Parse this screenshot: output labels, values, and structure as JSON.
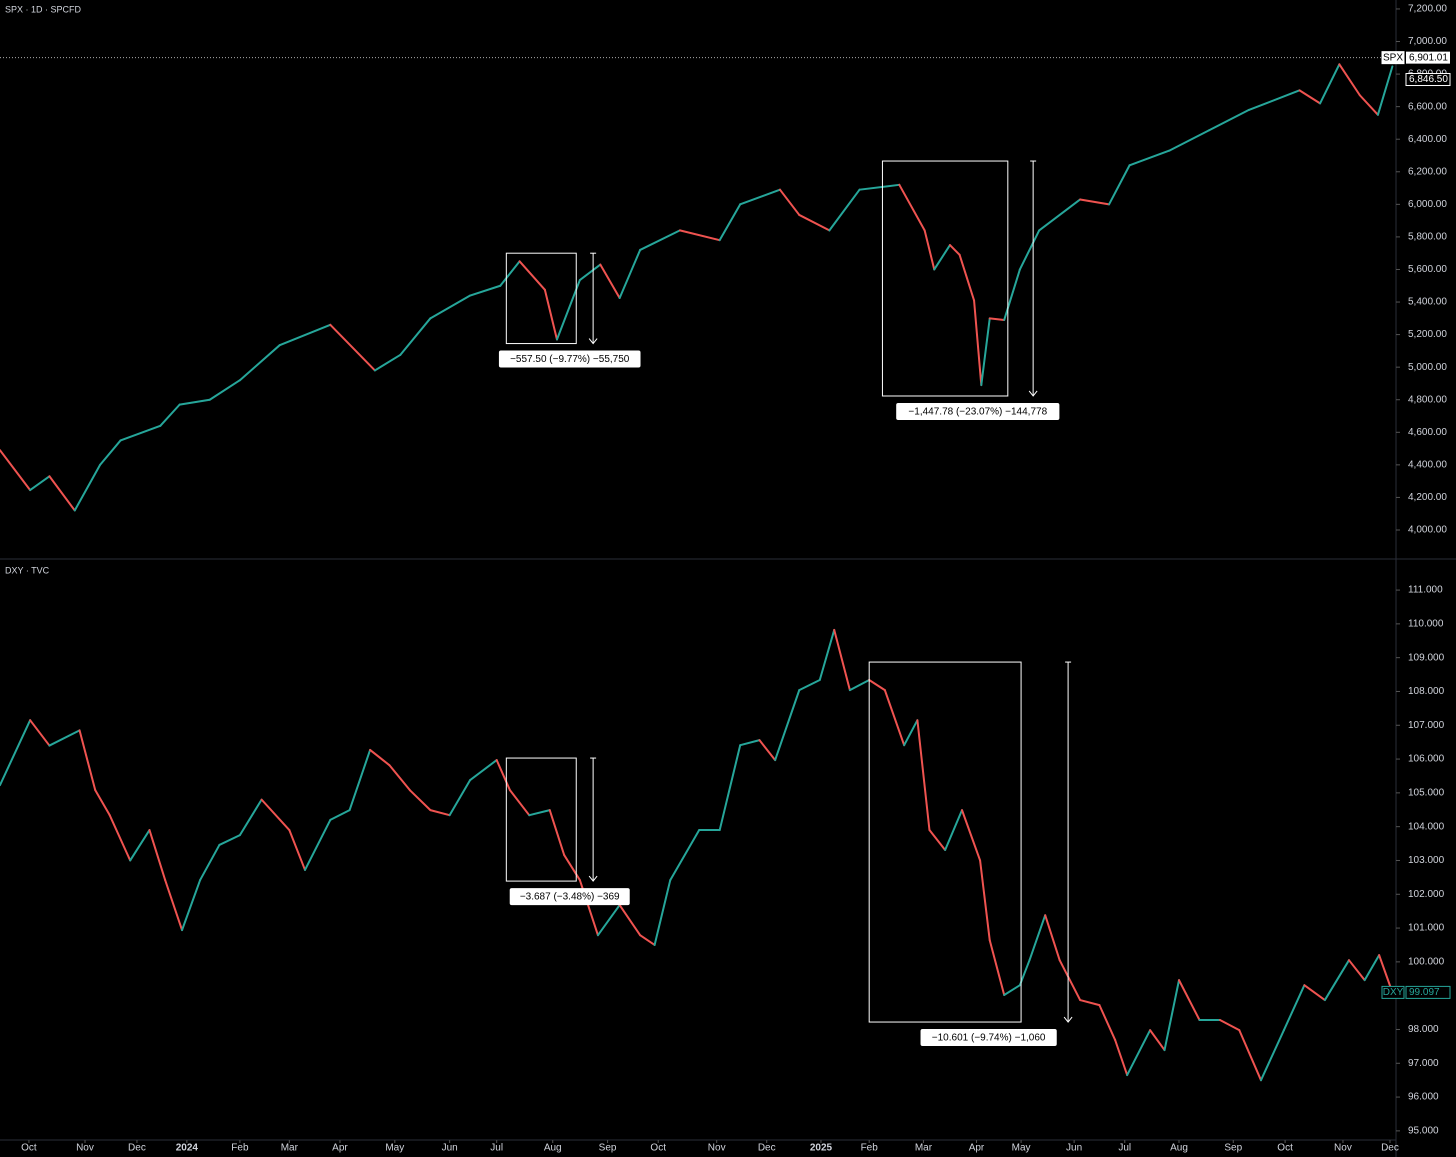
{
  "chart_data": [
    {
      "type": "line",
      "title": "SPX · 1D · SPCFD",
      "ylim": [
        3828,
        7255
      ],
      "xlim": [
        0,
        115.8
      ],
      "yticks": [
        {
          "value": 4000,
          "label": "4,000.00"
        },
        {
          "value": 4200,
          "label": "4,200.00"
        },
        {
          "value": 4400,
          "label": "4,400.00"
        },
        {
          "value": 4600,
          "label": "4,600.00"
        },
        {
          "value": 4800,
          "label": "4,800.00"
        },
        {
          "value": 5000,
          "label": "5,000.00"
        },
        {
          "value": 5200,
          "label": "5,200.00"
        },
        {
          "value": 5400,
          "label": "5,400.00"
        },
        {
          "value": 5600,
          "label": "5,600.00"
        },
        {
          "value": 5800,
          "label": "5,800.00"
        },
        {
          "value": 6000,
          "label": "6,000.00"
        },
        {
          "value": 6200,
          "label": "6,200.00"
        },
        {
          "value": 6400,
          "label": "6,400.00"
        },
        {
          "value": 6600,
          "label": "6,600.00"
        },
        {
          "value": 6800,
          "label": "6,800.00"
        },
        {
          "value": 7000,
          "label": "7,000.00"
        },
        {
          "value": 7200,
          "label": "7,200.00"
        }
      ],
      "up_color": "#26a69a",
      "down_color": "#ef5350",
      "series": [
        {
          "name": "SPX",
          "x": [
            0,
            2.5,
            4.1,
            6.2,
            8.3,
            10,
            13.3,
            14.9,
            17.4,
            19.9,
            23.2,
            27.4,
            31.1,
            33.2,
            35.7,
            39,
            41.5,
            43.1,
            45.2,
            46.2,
            48.1,
            49.8,
            51.4,
            53.1,
            56.4,
            59.7,
            61.4,
            64.7,
            66.3,
            68.8,
            71.3,
            74.6,
            76.7,
            77.5,
            78.8,
            79.6,
            80.8,
            81.4,
            82.1,
            83.3,
            84.6,
            86.2,
            89.6,
            92,
            93.7,
            97,
            100.3,
            103.6,
            107.8,
            109.5,
            111.1,
            112.8,
            114.3,
            115.5
          ],
          "values": [
            4490,
            4245,
            4330,
            4120,
            4400,
            4550,
            4640,
            4770,
            4800,
            4920,
            5135,
            5260,
            4980,
            5075,
            5300,
            5440,
            5500,
            5650,
            5475,
            5170,
            5535,
            5630,
            5425,
            5720,
            5840,
            5780,
            6000,
            6090,
            5935,
            5840,
            6090,
            6120,
            5840,
            5600,
            5750,
            5690,
            5410,
            4890,
            5300,
            5290,
            5600,
            5840,
            6030,
            6000,
            6240,
            6330,
            6455,
            6580,
            6700,
            6620,
            6860,
            6670,
            6550,
            6846.5
          ]
        }
      ],
      "price_line": {
        "value": 6901.01,
        "label": "6,901.01"
      },
      "last_price": {
        "value": 6846.5,
        "label": "6,846.50"
      },
      "annotations": [
        {
          "x": [
            42,
            47.8
          ],
          "range": [
            5700,
            5145
          ],
          "arrow_x": 49.2,
          "label": "−557.50 (−9.77%) −55,750"
        },
        {
          "x": [
            73.2,
            83.6
          ],
          "range": [
            6266,
            4823
          ],
          "arrow_x": 85.7,
          "label": "−1,447.78 (−23.07%) −144,778"
        }
      ]
    },
    {
      "type": "line",
      "title": "DXY · TVC",
      "ylim": [
        94.73,
        111.86
      ],
      "xlim": [
        0,
        115.8
      ],
      "yticks": [
        {
          "value": 95,
          "label": "95.000"
        },
        {
          "value": 96,
          "label": "96.000"
        },
        {
          "value": 97,
          "label": "97.000"
        },
        {
          "value": 98,
          "label": "98.000"
        },
        {
          "value": 99,
          "label": "99.000"
        },
        {
          "value": 100,
          "label": "100.000"
        },
        {
          "value": 101,
          "label": "101.000"
        },
        {
          "value": 102,
          "label": "102.000"
        },
        {
          "value": 103,
          "label": "103.000"
        },
        {
          "value": 104,
          "label": "104.000"
        },
        {
          "value": 105,
          "label": "105.000"
        },
        {
          "value": 106,
          "label": "106.000"
        },
        {
          "value": 107,
          "label": "107.000"
        },
        {
          "value": 108,
          "label": "108.000"
        },
        {
          "value": 109,
          "label": "109.000"
        },
        {
          "value": 110,
          "label": "110.000"
        },
        {
          "value": 111,
          "label": "111.000"
        }
      ],
      "xticks": [
        {
          "value": 2.4,
          "label": "Oct"
        },
        {
          "value": 7.05,
          "label": "Nov"
        },
        {
          "value": 11.36,
          "label": "Dec"
        },
        {
          "value": 15.5,
          "label": "2024"
        },
        {
          "value": 19.9,
          "label": "Feb"
        },
        {
          "value": 24,
          "label": "Mar"
        },
        {
          "value": 28.2,
          "label": "Apr"
        },
        {
          "value": 32.75,
          "label": "May"
        },
        {
          "value": 37.3,
          "label": "Jun"
        },
        {
          "value": 41.2,
          "label": "Jul"
        },
        {
          "value": 45.85,
          "label": "Aug"
        },
        {
          "value": 50.4,
          "label": "Sep"
        },
        {
          "value": 54.6,
          "label": "Oct"
        },
        {
          "value": 59.45,
          "label": "Nov"
        },
        {
          "value": 63.6,
          "label": "Dec"
        },
        {
          "value": 68.1,
          "label": "2025"
        },
        {
          "value": 72.1,
          "label": "Feb"
        },
        {
          "value": 76.6,
          "label": "Mar"
        },
        {
          "value": 81,
          "label": "Apr"
        },
        {
          "value": 84.7,
          "label": "May"
        },
        {
          "value": 89.1,
          "label": "Jun"
        },
        {
          "value": 93.3,
          "label": "Jul"
        },
        {
          "value": 97.8,
          "label": "Aug"
        },
        {
          "value": 102.3,
          "label": "Sep"
        },
        {
          "value": 106.6,
          "label": "Oct"
        },
        {
          "value": 111.4,
          "label": "Nov"
        },
        {
          "value": 115.3,
          "label": "Dec"
        }
      ],
      "up_color": "#26a69a",
      "down_color": "#ef5350",
      "series": [
        {
          "name": "DXY",
          "x": [
            0,
            2.5,
            4.1,
            6.6,
            7.9,
            9.1,
            10.8,
            12.4,
            13.7,
            15.1,
            16.6,
            18.2,
            19.9,
            21.7,
            24,
            25.3,
            27.4,
            29,
            30.7,
            32.3,
            34,
            35.7,
            37.3,
            39,
            41.2,
            42.3,
            43.9,
            45.6,
            46.8,
            48.1,
            49.6,
            51.4,
            53.1,
            54.3,
            55.6,
            58,
            59.7,
            61.4,
            63,
            64.3,
            66.3,
            68,
            69.2,
            70.5,
            72.1,
            73.4,
            75,
            76.1,
            77.1,
            78.4,
            79.8,
            81.3,
            82.1,
            83.3,
            84.6,
            85.4,
            86.7,
            87.9,
            89.6,
            91.2,
            92.5,
            93.5,
            95.4,
            96.6,
            97.8,
            99.5,
            101.2,
            102.8,
            104.6,
            106.5,
            108.2,
            109.9,
            111.9,
            113.2,
            114.4,
            115.5
          ],
          "values": [
            105.23,
            107.15,
            106.4,
            106.85,
            105.08,
            104.34,
            103,
            103.9,
            102.42,
            100.94,
            102.42,
            103.46,
            103.75,
            104.8,
            103.9,
            102.72,
            104.2,
            104.49,
            106.27,
            105.82,
            105.08,
            104.49,
            104.34,
            105.38,
            105.97,
            105.08,
            104.34,
            104.49,
            103.16,
            102.42,
            100.79,
            101.68,
            100.79,
            100.5,
            102.42,
            103.9,
            103.9,
            106.41,
            106.56,
            105.97,
            108.04,
            108.34,
            109.82,
            108.04,
            108.34,
            108.04,
            106.41,
            107.15,
            103.9,
            103.31,
            104.49,
            103,
            100.64,
            99.02,
            99.31,
            100.05,
            101.38,
            100.05,
            98.87,
            98.72,
            97.69,
            96.65,
            97.98,
            97.39,
            99.46,
            98.28,
            98.28,
            97.98,
            96.5,
            97.98,
            99.31,
            98.87,
            100.05,
            99.46,
            100.2,
            99.097
          ]
        }
      ],
      "last_price": {
        "value": 99.097,
        "label": "99.097"
      },
      "annotations": [
        {
          "x": [
            42,
            47.8
          ],
          "range": [
            106.03,
            102.39
          ],
          "arrow_x": 49.2,
          "label": "−3.687 (−3.48%) −369"
        },
        {
          "x": [
            72.1,
            84.7
          ],
          "range": [
            108.87,
            98.22
          ],
          "arrow_x": 88.6,
          "label": "−10.601 (−9.74%) −1,060"
        }
      ]
    }
  ]
}
